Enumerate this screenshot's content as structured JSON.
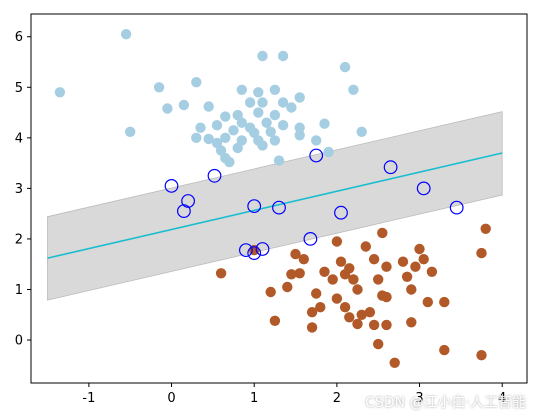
{
  "chart_data": {
    "type": "scatter",
    "title": "",
    "xlabel": "",
    "ylabel": "",
    "xlim": [
      -1.7,
      4.3
    ],
    "ylim": [
      -0.85,
      6.45
    ],
    "x_ticks": [
      "-1",
      "0",
      "1",
      "2",
      "3",
      "4"
    ],
    "x_tick_values": [
      -1,
      0,
      1,
      2,
      3,
      4
    ],
    "y_ticks": [
      "0",
      "1",
      "2",
      "3",
      "4",
      "5",
      "6"
    ],
    "y_tick_values": [
      0,
      1,
      2,
      3,
      4,
      5,
      6
    ],
    "grid": false,
    "colors": {
      "class_a": "#a6cee3",
      "class_b": "#b15928",
      "support_vector_edge": "#0000ff",
      "decision_line": "#17becf",
      "margin_band": "#d9d9d9"
    },
    "decision_boundary": {
      "x": [
        -1.5,
        4.0
      ],
      "y": [
        1.62,
        3.7
      ]
    },
    "margin_band": {
      "upper": {
        "x": [
          -1.5,
          4.0
        ],
        "y": [
          2.44,
          4.52
        ]
      },
      "lower": {
        "x": [
          -1.5,
          4.0
        ],
        "y": [
          0.79,
          2.87
        ]
      }
    },
    "series": [
      {
        "color": "#a6cee3",
        "points": [
          [
            -0.55,
            6.05
          ],
          [
            1.1,
            5.62
          ],
          [
            1.35,
            5.62
          ],
          [
            -1.35,
            4.9
          ],
          [
            -0.15,
            5.0
          ],
          [
            0.3,
            5.1
          ],
          [
            0.85,
            4.95
          ],
          [
            1.05,
            4.9
          ],
          [
            1.25,
            4.95
          ],
          [
            1.55,
            4.8
          ],
          [
            2.1,
            5.4
          ],
          [
            0.15,
            4.65
          ],
          [
            -0.05,
            4.58
          ],
          [
            0.45,
            4.62
          ],
          [
            0.95,
            4.7
          ],
          [
            1.1,
            4.7
          ],
          [
            1.35,
            4.7
          ],
          [
            1.45,
            4.6
          ],
          [
            1.25,
            4.45
          ],
          [
            1.05,
            4.5
          ],
          [
            0.8,
            4.45
          ],
          [
            0.65,
            4.42
          ],
          [
            0.85,
            4.3
          ],
          [
            0.95,
            4.2
          ],
          [
            1.15,
            4.3
          ],
          [
            1.35,
            4.25
          ],
          [
            0.55,
            4.25
          ],
          [
            0.35,
            4.2
          ],
          [
            0.75,
            4.15
          ],
          [
            1.0,
            4.1
          ],
          [
            1.2,
            4.12
          ],
          [
            1.55,
            4.2
          ],
          [
            1.85,
            4.28
          ],
          [
            2.3,
            4.12
          ],
          [
            -0.5,
            4.12
          ],
          [
            0.3,
            4.0
          ],
          [
            0.45,
            3.98
          ],
          [
            0.65,
            4.0
          ],
          [
            0.85,
            3.95
          ],
          [
            1.05,
            3.95
          ],
          [
            1.25,
            3.95
          ],
          [
            1.75,
            3.95
          ],
          [
            0.55,
            3.9
          ],
          [
            0.6,
            3.75
          ],
          [
            0.8,
            3.8
          ],
          [
            1.1,
            3.85
          ],
          [
            1.55,
            4.05
          ],
          [
            1.9,
            3.72
          ],
          [
            0.65,
            3.6
          ],
          [
            0.7,
            3.52
          ],
          [
            1.3,
            3.55
          ],
          [
            2.2,
            4.95
          ]
        ]
      },
      {
        "color": "#b15928",
        "points": [
          [
            0.6,
            1.32
          ],
          [
            1.0,
            1.78
          ],
          [
            1.2,
            0.95
          ],
          [
            1.25,
            0.38
          ],
          [
            1.5,
            1.7
          ],
          [
            1.6,
            1.6
          ],
          [
            1.55,
            1.32
          ],
          [
            1.45,
            1.3
          ],
          [
            1.4,
            1.05
          ],
          [
            1.75,
            0.92
          ],
          [
            1.8,
            0.65
          ],
          [
            1.7,
            0.25
          ],
          [
            1.85,
            1.35
          ],
          [
            1.95,
            1.2
          ],
          [
            2.05,
            1.55
          ],
          [
            2.1,
            1.3
          ],
          [
            2.15,
            1.42
          ],
          [
            2.2,
            1.2
          ],
          [
            2.25,
            1.0
          ],
          [
            2.35,
            1.85
          ],
          [
            2.45,
            1.6
          ],
          [
            2.5,
            1.2
          ],
          [
            2.6,
            0.85
          ],
          [
            2.6,
            1.45
          ],
          [
            2.55,
            2.12
          ],
          [
            2.8,
            1.55
          ],
          [
            2.85,
            1.25
          ],
          [
            2.9,
            1.0
          ],
          [
            3.0,
            1.8
          ],
          [
            3.05,
            1.6
          ],
          [
            3.1,
            0.75
          ],
          [
            3.15,
            1.35
          ],
          [
            3.3,
            0.75
          ],
          [
            3.3,
            -0.2
          ],
          [
            2.4,
            0.55
          ],
          [
            2.45,
            0.3
          ],
          [
            2.5,
            -0.08
          ],
          [
            2.25,
            0.32
          ],
          [
            2.0,
            0.82
          ],
          [
            2.1,
            0.65
          ],
          [
            2.3,
            0.5
          ],
          [
            2.55,
            0.88
          ],
          [
            2.6,
            0.3
          ],
          [
            2.7,
            -0.45
          ],
          [
            2.9,
            0.35
          ],
          [
            2.95,
            1.45
          ],
          [
            3.8,
            2.2
          ],
          [
            3.75,
            1.72
          ],
          [
            3.75,
            -0.3
          ],
          [
            1.7,
            0.55
          ],
          [
            2.0,
            1.95
          ],
          [
            2.15,
            0.45
          ]
        ]
      }
    ],
    "support_vectors": [
      [
        0.0,
        3.05
      ],
      [
        0.2,
        2.75
      ],
      [
        0.15,
        2.55
      ],
      [
        0.52,
        3.25
      ],
      [
        1.0,
        2.65
      ],
      [
        1.3,
        2.62
      ],
      [
        1.75,
        3.65
      ],
      [
        2.05,
        2.52
      ],
      [
        2.65,
        3.42
      ],
      [
        3.05,
        3.0
      ],
      [
        3.45,
        2.62
      ],
      [
        1.68,
        2.0
      ],
      [
        0.9,
        1.78
      ],
      [
        1.0,
        1.72
      ],
      [
        1.1,
        1.8
      ]
    ]
  },
  "watermark": "CSDN @江小白·人工智能"
}
